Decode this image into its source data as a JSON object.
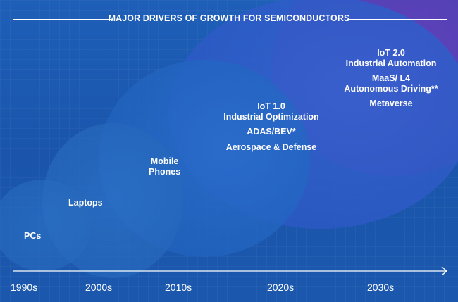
{
  "title": "MAJOR DRIVERS OF GROWTH FOR SEMICONDUCTORS",
  "colors": {
    "background": "#1b58ad",
    "bubble_pcs": "#2466b8",
    "bubble_laptops": "#2a6cc0",
    "bubble_mobile": "#2166c2",
    "bubble_2020s": "#2e5cc9",
    "bubble_2030s": "#5a3fb6",
    "text": "#ffffff"
  },
  "bubbles": [
    {
      "era": "PCs",
      "lines": [
        "PCs"
      ]
    },
    {
      "era": "Laptops",
      "lines": [
        "Laptops"
      ]
    },
    {
      "era": "Mobile Phones",
      "lines": [
        "Mobile",
        "Phones"
      ]
    },
    {
      "era": "2020s",
      "lines": [
        "IoT 1.0",
        "Industrial Optimization"
      ],
      "extra": [
        "ADAS/BEV*",
        "Aerospace & Defense"
      ]
    },
    {
      "era": "2030s",
      "lines": [
        "IoT 2.0",
        "Industrial Automation"
      ],
      "extra1": [
        "MaaS/ L4",
        "Autonomous Driving**"
      ],
      "extra2": [
        "Metaverse"
      ]
    }
  ],
  "timeline": {
    "decades": [
      "1990s",
      "2000s",
      "2010s",
      "2020s",
      "2030s"
    ]
  }
}
